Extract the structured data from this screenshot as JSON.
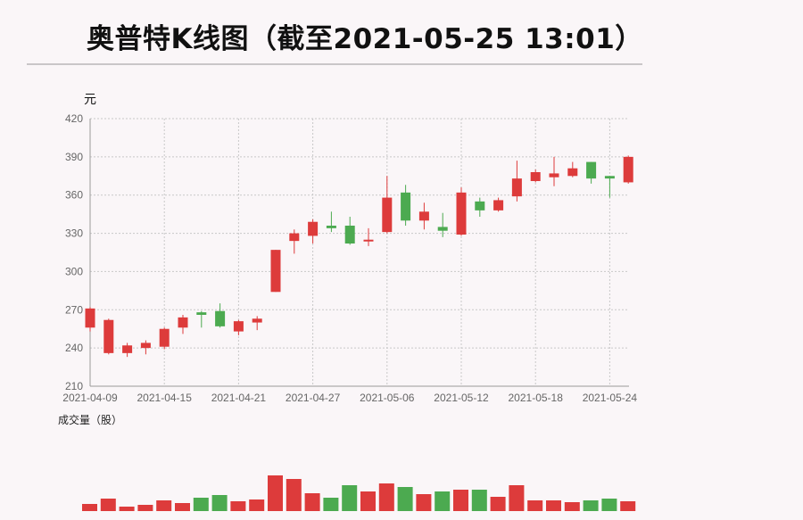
{
  "title": "奥普特K线图（截至2021-05-25 13:01）",
  "colors": {
    "up": "#dd3b3b",
    "down": "#4caa50",
    "grid": "#c8c8c8",
    "axis": "#999999"
  },
  "chart_data": {
    "type": "candlestick",
    "title": "奥普特K线图（截至2021-05-25 13:01）",
    "price_unit": "元",
    "volume_label": "成交量（股）",
    "ylim": [
      210,
      420
    ],
    "yticks": [
      210,
      240,
      270,
      300,
      330,
      360,
      390,
      420
    ],
    "x_tick_labels": [
      "2021-04-09",
      "2021-04-15",
      "2021-04-21",
      "2021-04-27",
      "2021-05-06",
      "2021-05-12",
      "2021-05-18",
      "2021-05-24"
    ],
    "x_tick_indices": [
      0,
      4,
      8,
      12,
      16,
      20,
      24,
      28
    ],
    "grid": true,
    "candles": [
      {
        "open": 256,
        "close": 271,
        "high": 272,
        "low": 253,
        "volume": 8
      },
      {
        "open": 236,
        "close": 262,
        "high": 263,
        "low": 235,
        "volume": 14
      },
      {
        "open": 236,
        "close": 242,
        "high": 244,
        "low": 233,
        "volume": 5
      },
      {
        "open": 240,
        "close": 244,
        "high": 246,
        "low": 235,
        "volume": 7
      },
      {
        "open": 241,
        "close": 255,
        "high": 256,
        "low": 239,
        "volume": 12
      },
      {
        "open": 256,
        "close": 264,
        "high": 266,
        "low": 251,
        "volume": 9
      },
      {
        "open": 268,
        "close": 266,
        "high": 269,
        "low": 256,
        "volume": 15
      },
      {
        "open": 269,
        "close": 257,
        "high": 275,
        "low": 256,
        "volume": 18
      },
      {
        "open": 253,
        "close": 261,
        "high": 262,
        "low": 250,
        "volume": 11
      },
      {
        "open": 260,
        "close": 263,
        "high": 265,
        "low": 254,
        "volume": 13
      },
      {
        "open": 284,
        "close": 317,
        "high": 317,
        "low": 284,
        "volume": 40
      },
      {
        "open": 324,
        "close": 330,
        "high": 333,
        "low": 314,
        "volume": 36
      },
      {
        "open": 328,
        "close": 339,
        "high": 341,
        "low": 322,
        "volume": 20
      },
      {
        "open": 336,
        "close": 334,
        "high": 347,
        "low": 331,
        "volume": 15
      },
      {
        "open": 336,
        "close": 322,
        "high": 343,
        "low": 321,
        "volume": 29
      },
      {
        "open": 325,
        "close": 325,
        "high": 334,
        "low": 320,
        "volume": 22
      },
      {
        "open": 331,
        "close": 358,
        "high": 375,
        "low": 330,
        "volume": 31
      },
      {
        "open": 362,
        "close": 340,
        "high": 368,
        "low": 336,
        "volume": 27
      },
      {
        "open": 340,
        "close": 347,
        "high": 354,
        "low": 333,
        "volume": 19
      },
      {
        "open": 335,
        "close": 332,
        "high": 346,
        "low": 327,
        "volume": 22
      },
      {
        "open": 329,
        "close": 362,
        "high": 366,
        "low": 328,
        "volume": 24
      },
      {
        "open": 355,
        "close": 348,
        "high": 358,
        "low": 343,
        "volume": 24
      },
      {
        "open": 348,
        "close": 356,
        "high": 358,
        "low": 347,
        "volume": 16
      },
      {
        "open": 359,
        "close": 373,
        "high": 387,
        "low": 355,
        "volume": 29
      },
      {
        "open": 371,
        "close": 378,
        "high": 380,
        "low": 370,
        "volume": 12
      },
      {
        "open": 374,
        "close": 377,
        "high": 390,
        "low": 367,
        "volume": 12
      },
      {
        "open": 375,
        "close": 381,
        "high": 386,
        "low": 374,
        "volume": 10
      },
      {
        "open": 386,
        "close": 373,
        "high": 386,
        "low": 369,
        "volume": 12
      },
      {
        "open": 375,
        "close": 373,
        "high": 375,
        "low": 358,
        "volume": 14
      },
      {
        "open": 370,
        "close": 390,
        "high": 391,
        "low": 369,
        "volume": 11
      }
    ]
  }
}
